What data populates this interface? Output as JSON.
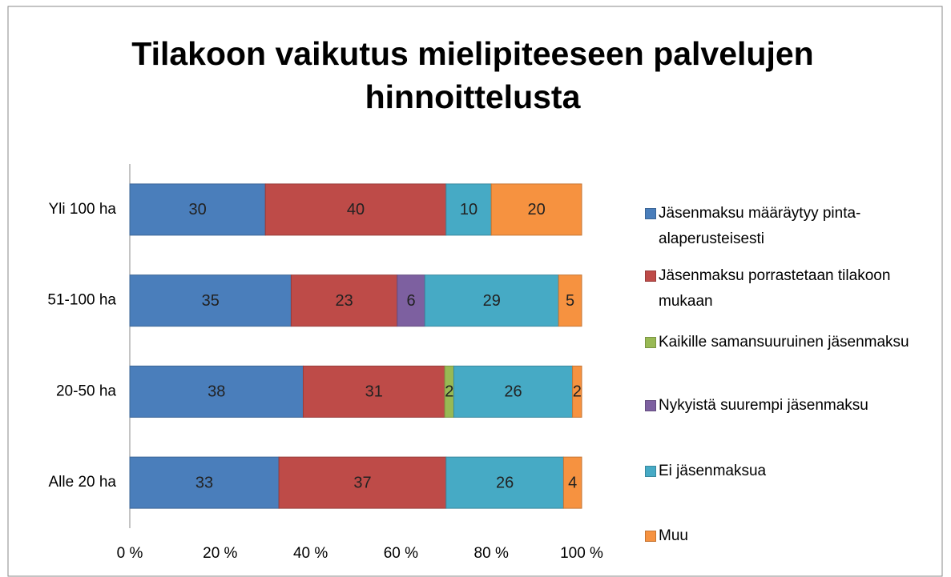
{
  "chart_data": {
    "type": "bar",
    "orientation": "horizontal",
    "stacking": "percent",
    "title": "Tilakoon vaikutus mielipiteeseen palvelujen hinnoittelusta",
    "categories": [
      "Alle 20 ha",
      "20-50 ha",
      "51-100 ha",
      "Yli 100 ha"
    ],
    "series": [
      {
        "name": "Jäsenmaksu määräytyy pinta-alaperusteisesti",
        "color": "#4a7ebb",
        "values": [
          33,
          38,
          35,
          30
        ]
      },
      {
        "name": "Jäsenmaksu porrastetaan tilakoon mukaan",
        "color": "#be4b48",
        "values": [
          37,
          31,
          23,
          40
        ]
      },
      {
        "name": "Kaikille samansuuruinen jäsenmaksu",
        "color": "#98b954",
        "values": [
          null,
          2,
          null,
          null
        ]
      },
      {
        "name": "Nykyistä suurempi jäsenmaksu",
        "color": "#7d60a0",
        "values": [
          null,
          null,
          6,
          null
        ]
      },
      {
        "name": "Ei jäsenmaksua",
        "color": "#46aac5",
        "values": [
          26,
          26,
          29,
          10
        ]
      },
      {
        "name": "Muu",
        "color": "#f69240",
        "values": [
          4,
          2,
          5,
          20
        ]
      }
    ],
    "xlim": [
      0,
      100
    ],
    "xticks": [
      {
        "value": 0,
        "label": "0 %"
      },
      {
        "value": 20,
        "label": "20 %"
      },
      {
        "value": 40,
        "label": "40 %"
      },
      {
        "value": 60,
        "label": "60 %"
      },
      {
        "value": 80,
        "label": "80 %"
      },
      {
        "value": 100,
        "label": "100 %"
      }
    ],
    "legend": "right"
  }
}
